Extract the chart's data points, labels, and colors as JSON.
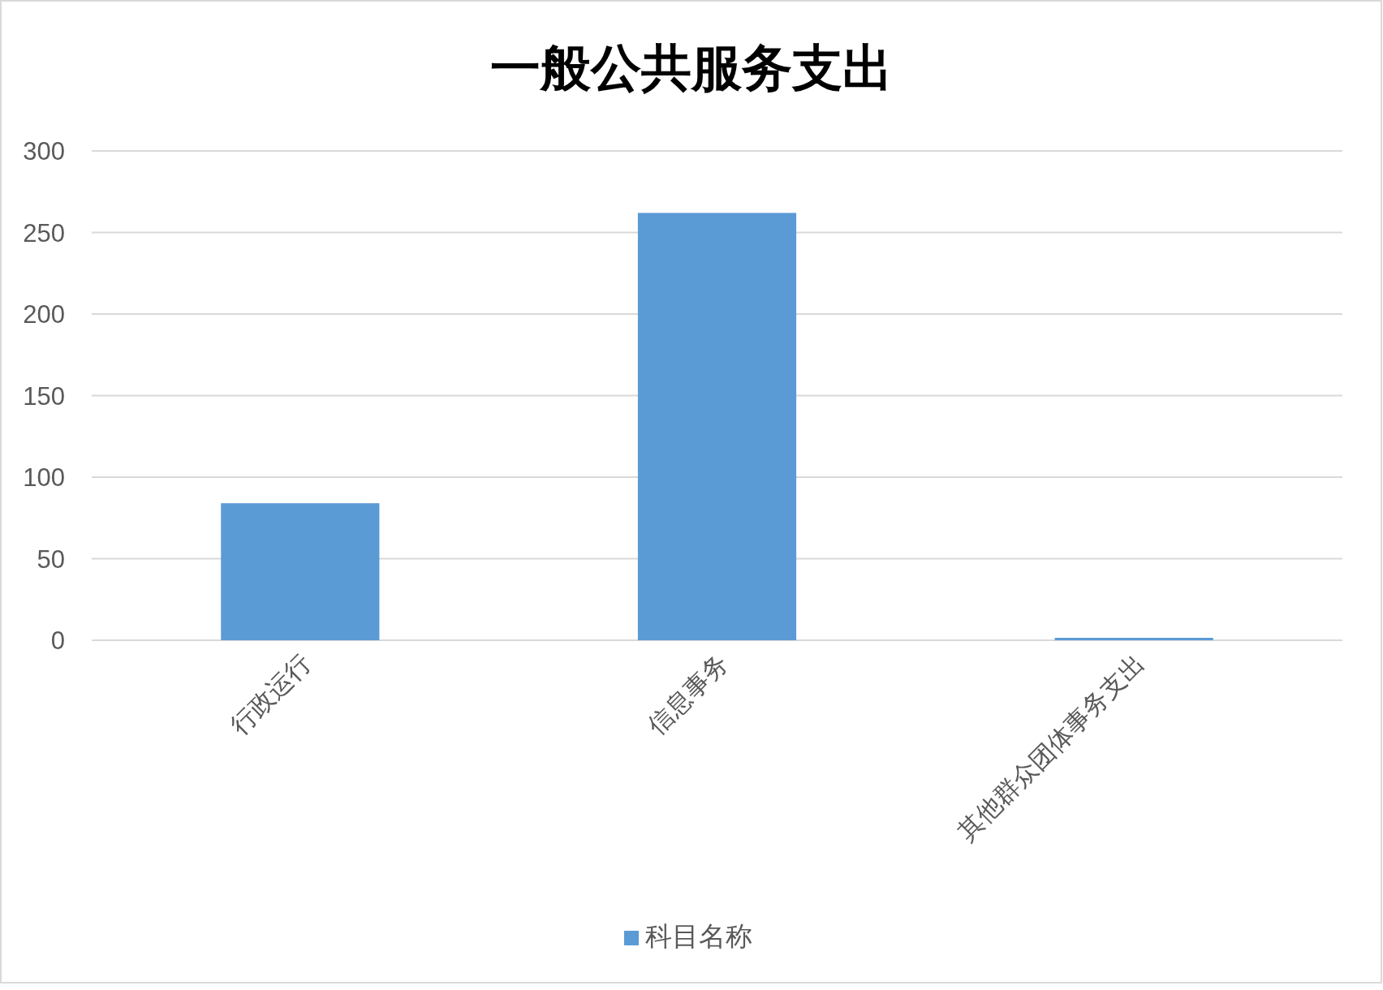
{
  "chart_data": {
    "type": "bar",
    "title": "一般公共服务支出",
    "categories": [
      "行政运行",
      "信息事务",
      "其他群众团体事务支出"
    ],
    "series": [
      {
        "name": "科目名称",
        "color": "#5b9bd5",
        "values": [
          84,
          262,
          1.5
        ]
      }
    ],
    "ylim": [
      0,
      300
    ],
    "yticks": [
      0,
      50,
      100,
      150,
      200,
      250,
      300
    ],
    "grid": "y",
    "legend": "bottom"
  }
}
